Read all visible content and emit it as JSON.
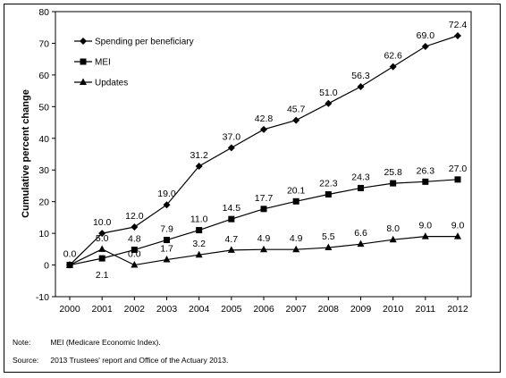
{
  "chart_data": {
    "type": "line",
    "title": "",
    "xlabel": "",
    "ylabel": "Cumulative percent change",
    "x": [
      "2000",
      "2001",
      "2002",
      "2003",
      "2004",
      "2005",
      "2006",
      "2007",
      "2008",
      "2009",
      "2010",
      "2011",
      "2012"
    ],
    "ylim": [
      -10,
      80
    ],
    "yticks": [
      "-10",
      "0",
      "10",
      "20",
      "30",
      "40",
      "50",
      "60",
      "70",
      "80"
    ],
    "grid": false,
    "legend_position": "top-left",
    "series": [
      {
        "name": "Spending per beneficiary",
        "marker": "diamond",
        "values": [
          0.0,
          10.0,
          12.0,
          19.0,
          31.2,
          37.0,
          42.8,
          45.7,
          51.0,
          56.3,
          62.6,
          69.0,
          72.4
        ],
        "labels": [
          "0.0",
          "10.0",
          "12.0",
          "19.0",
          "31.2",
          "37.0",
          "42.8",
          "45.7",
          "51.0",
          "56.3",
          "62.6",
          "69.0",
          "72.4"
        ]
      },
      {
        "name": "MEI",
        "marker": "square",
        "values": [
          0.0,
          2.1,
          4.8,
          7.9,
          11.0,
          14.5,
          17.7,
          20.1,
          22.3,
          24.3,
          25.8,
          26.3,
          27.0
        ],
        "labels": [
          "",
          "2.1",
          "4.8",
          "7.9",
          "11.0",
          "14.5",
          "17.7",
          "20.1",
          "22.3",
          "24.3",
          "25.8",
          "26.3",
          "27.0"
        ]
      },
      {
        "name": "Updates",
        "marker": "triangle",
        "values": [
          0.0,
          5.0,
          0.0,
          1.7,
          3.2,
          4.7,
          4.9,
          4.9,
          5.5,
          6.6,
          8.0,
          9.0,
          9.0
        ],
        "labels": [
          "",
          "5.0",
          "0.0",
          "1.7",
          "3.2",
          "4.7",
          "4.9",
          "4.9",
          "5.5",
          "6.6",
          "8.0",
          "9.0",
          "9.0"
        ]
      }
    ]
  },
  "notes": [
    {
      "key": "Note:",
      "text": "MEI (Medicare Economic Index)."
    },
    {
      "key": "Source:",
      "text": "2013 Trustees' report and Office of the Actuary 2013."
    }
  ]
}
